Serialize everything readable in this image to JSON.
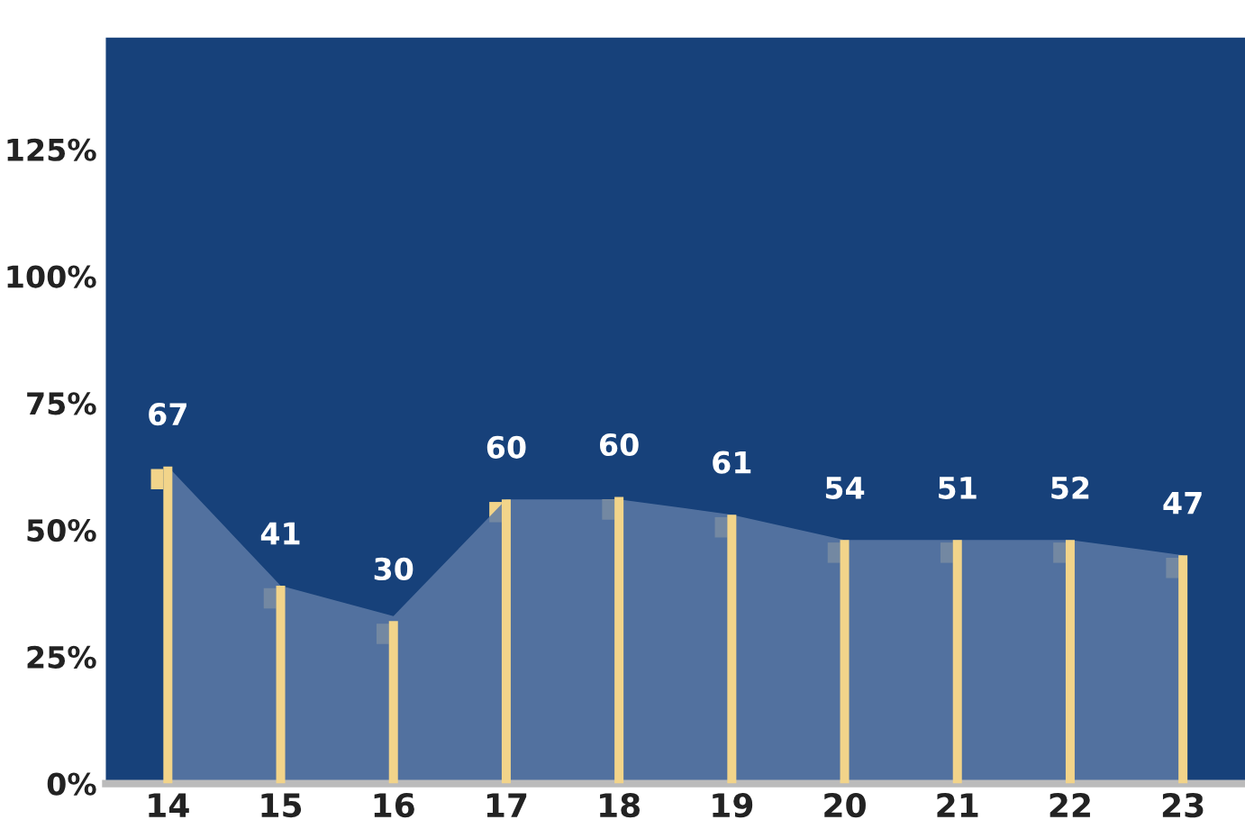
{
  "chart_data": {
    "type": "area",
    "categories": [
      "14",
      "15",
      "16",
      "17",
      "18",
      "19",
      "20",
      "21",
      "22",
      "23"
    ],
    "series": [
      {
        "color": "#5d7aa6",
        "values": [
          62.5,
          39,
          33,
          56,
          56,
          53,
          48,
          48,
          48,
          45
        ]
      },
      {
        "type": "bar",
        "color": "#f2d48a",
        "marker": "square",
        "values": [
          62.5,
          39,
          32,
          56,
          56.5,
          53,
          48,
          48,
          48,
          45
        ]
      }
    ],
    "ylim": [
      0,
      147
    ],
    "yticks": [
      {
        "value": 0,
        "label": "0%"
      },
      {
        "value": 25,
        "label": "25%"
      },
      {
        "value": 50,
        "label": "50%"
      },
      {
        "value": 75,
        "label": "75%"
      },
      {
        "value": 100,
        "label": "100%"
      },
      {
        "value": 125,
        "label": "125%"
      }
    ],
    "grid": false,
    "legend": false,
    "annotations": [
      "67",
      "41",
      "30",
      "60",
      "60",
      "61",
      "54",
      "51",
      "52",
      "47"
    ]
  }
}
